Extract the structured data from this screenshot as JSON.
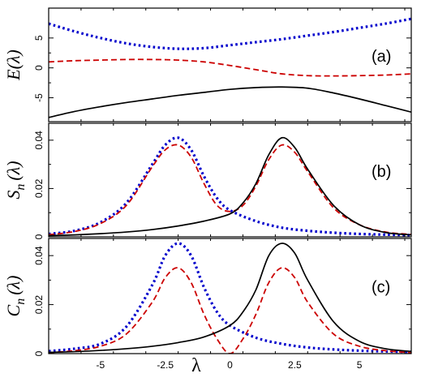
{
  "chart_data": [
    {
      "type": "line",
      "panel_label": "(a)",
      "ylabel": "E(λ)",
      "xlim": [
        -7,
        7
      ],
      "ylim": [
        -9,
        10
      ],
      "yticks": [
        -5,
        0,
        5
      ],
      "ytick_labels": [
        "-5",
        "0",
        "5"
      ],
      "xticks": [
        -5,
        -2.5,
        0,
        2.5,
        5
      ],
      "xtick_labels": [
        "-5",
        "-2.5",
        "0",
        "2.5",
        "5"
      ],
      "series": [
        {
          "color": "#0000cc",
          "style": "dotted",
          "x": [
            -7,
            -6,
            -5,
            -4,
            -3,
            -2,
            -1,
            0,
            1,
            2,
            3,
            4,
            5,
            6,
            7
          ],
          "y": [
            7.4,
            6.1,
            5.0,
            4.1,
            3.5,
            3.2,
            3.3,
            3.8,
            4.3,
            4.8,
            5.4,
            6.0,
            6.7,
            7.4,
            8.2
          ]
        },
        {
          "color": "#cc0000",
          "style": "dashed",
          "x": [
            -7,
            -6,
            -5,
            -4,
            -3,
            -2,
            -1,
            0,
            1,
            2,
            3,
            4,
            5,
            6,
            7
          ],
          "y": [
            1.0,
            1.2,
            1.3,
            1.4,
            1.4,
            1.3,
            1.0,
            0.4,
            -0.3,
            -1.0,
            -1.3,
            -1.35,
            -1.3,
            -1.2,
            -1.0
          ]
        },
        {
          "color": "#000000",
          "style": "solid",
          "x": [
            -7,
            -6,
            -5,
            -4,
            -3,
            -2,
            -1,
            0,
            1,
            2,
            3,
            4,
            5,
            6,
            7
          ],
          "y": [
            -8.3,
            -7.3,
            -6.5,
            -5.8,
            -5.2,
            -4.6,
            -4.1,
            -3.6,
            -3.3,
            -3.2,
            -3.4,
            -4.2,
            -5.2,
            -6.3,
            -7.4
          ]
        }
      ]
    },
    {
      "type": "line",
      "panel_label": "(b)",
      "ylabel": "S",
      "ylabel_sub": "n",
      "ylabel_suffix": "(λ)",
      "xlim": [
        -7,
        7
      ],
      "ylim": [
        0,
        0.047
      ],
      "yticks": [
        0,
        0.02,
        0.04
      ],
      "ytick_labels": [
        "0",
        "0.02",
        "0.04"
      ],
      "xticks": [
        -5,
        -2.5,
        0,
        2.5,
        5
      ],
      "xtick_labels": [
        "-5",
        "-2.5",
        "0",
        "2.5",
        "5"
      ],
      "series": [
        {
          "color": "#0000cc",
          "style": "dotted",
          "x": [
            -7,
            -6,
            -5,
            -4,
            -3,
            -2.5,
            -2,
            -1.5,
            -1,
            -0.5,
            0,
            1,
            2,
            3,
            4,
            5,
            6,
            7
          ],
          "y": [
            0.0012,
            0.0025,
            0.006,
            0.014,
            0.03,
            0.038,
            0.041,
            0.036,
            0.025,
            0.016,
            0.011,
            0.0065,
            0.0038,
            0.0025,
            0.0017,
            0.0012,
            0.0009,
            0.0007
          ]
        },
        {
          "color": "#cc0000",
          "style": "dashed",
          "x": [
            -7,
            -6,
            -5,
            -4,
            -3,
            -2.5,
            -2,
            -1.5,
            -1,
            -0.5,
            0,
            0.5,
            1,
            1.5,
            2,
            2.5,
            3,
            4,
            5,
            6,
            7
          ],
          "y": [
            0.0009,
            0.0022,
            0.0055,
            0.013,
            0.029,
            0.036,
            0.038,
            0.033,
            0.022,
            0.013,
            0.0105,
            0.013,
            0.021,
            0.032,
            0.038,
            0.035,
            0.027,
            0.012,
            0.005,
            0.002,
            0.001
          ]
        },
        {
          "color": "#000000",
          "style": "solid",
          "x": [
            -7,
            -6,
            -5,
            -4,
            -3,
            -2,
            -1,
            0,
            0.5,
            1,
            1.5,
            2,
            2.5,
            3,
            4,
            5,
            6,
            7
          ],
          "y": [
            0.0005,
            0.0008,
            0.0013,
            0.002,
            0.003,
            0.0045,
            0.0065,
            0.0095,
            0.014,
            0.022,
            0.034,
            0.041,
            0.037,
            0.028,
            0.013,
            0.005,
            0.0018,
            0.0008
          ]
        }
      ]
    },
    {
      "type": "line",
      "panel_label": "(c)",
      "ylabel": "C",
      "ylabel_sub": "n",
      "ylabel_suffix": "(λ)",
      "xlim": [
        -7,
        7
      ],
      "ylim": [
        0,
        0.047
      ],
      "yticks": [
        0,
        0.02,
        0.04
      ],
      "ytick_labels": [
        "0",
        "0.02",
        "0.04"
      ],
      "xticks": [
        -5,
        -2.5,
        0,
        2.5,
        5
      ],
      "xtick_labels": [
        "-5",
        "-2.5",
        "0",
        "2.5",
        "5"
      ],
      "xlabel": "λ",
      "series": [
        {
          "color": "#0000cc",
          "style": "dotted",
          "x": [
            -7,
            -6,
            -5,
            -4,
            -3,
            -2.5,
            -2,
            -1.5,
            -1,
            -0.5,
            0,
            1,
            2,
            3,
            4,
            5,
            6,
            7
          ],
          "y": [
            0.001,
            0.002,
            0.004,
            0.011,
            0.028,
            0.04,
            0.045,
            0.04,
            0.027,
            0.017,
            0.0115,
            0.0065,
            0.004,
            0.0025,
            0.0017,
            0.0012,
            0.0009,
            0.0007
          ]
        },
        {
          "color": "#cc0000",
          "style": "dashed",
          "x": [
            -7,
            -6,
            -5,
            -4,
            -3,
            -2.5,
            -2,
            -1.5,
            -1,
            -0.5,
            0,
            0.5,
            1,
            1.5,
            2,
            2.5,
            3,
            4,
            5,
            6,
            7
          ],
          "y": [
            0.0004,
            0.0012,
            0.003,
            0.008,
            0.021,
            0.031,
            0.035,
            0.029,
            0.016,
            0.006,
            0.0,
            0.006,
            0.016,
            0.029,
            0.035,
            0.031,
            0.021,
            0.008,
            0.003,
            0.0012,
            0.0004
          ]
        },
        {
          "color": "#000000",
          "style": "solid",
          "x": [
            -7,
            -6,
            -5,
            -4,
            -3,
            -2,
            -1,
            0,
            0.5,
            1,
            1.5,
            2,
            2.5,
            3,
            4,
            5,
            6,
            7
          ],
          "y": [
            0.0005,
            0.0008,
            0.0013,
            0.002,
            0.003,
            0.0045,
            0.0068,
            0.0115,
            0.017,
            0.026,
            0.04,
            0.045,
            0.041,
            0.03,
            0.013,
            0.005,
            0.002,
            0.0009
          ]
        }
      ]
    }
  ]
}
